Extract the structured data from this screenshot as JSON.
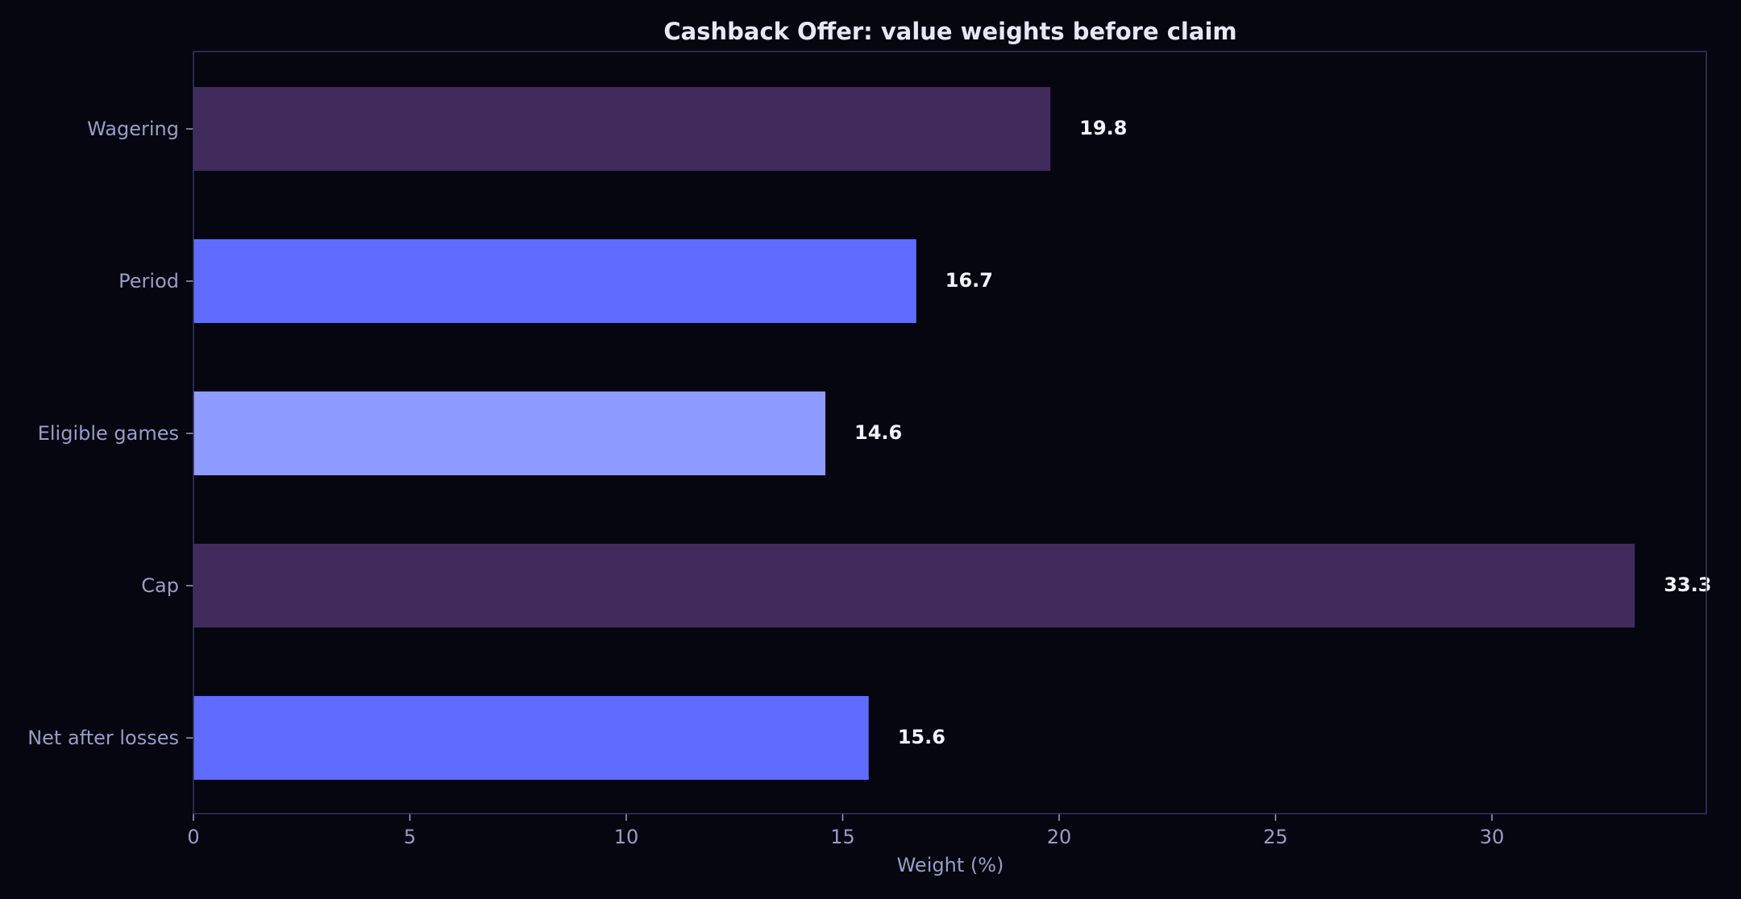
{
  "chart_data": {
    "type": "bar",
    "orientation": "horizontal",
    "title": "Cashback Offer: value weights before claim",
    "xlabel": "Weight (%)",
    "ylabel": "",
    "categories": [
      "Wagering",
      "Period",
      "Eligible games",
      "Cap",
      "Net after losses"
    ],
    "values": [
      19.8,
      16.7,
      14.6,
      33.3,
      15.6
    ],
    "value_labels": [
      "19.8",
      "16.7",
      "14.6",
      "33.3",
      "15.6"
    ],
    "bar_colors": [
      "#402b5c",
      "#5f6cff",
      "#8e9bff",
      "#402b5c",
      "#5f6cff"
    ],
    "xlim": [
      0,
      35
    ],
    "xticks": [
      0,
      5,
      10,
      15,
      20,
      25,
      30
    ],
    "xtick_labels": [
      "0",
      "5",
      "10",
      "15",
      "20",
      "25",
      "30"
    ],
    "grid": false,
    "legend": "none"
  },
  "colors": {
    "background": "#05060f",
    "axes_frame": "#34365e",
    "tick_text": "#9a9cc9",
    "title_text": "#e6e8f7",
    "value_text": "#f2f3fb"
  }
}
